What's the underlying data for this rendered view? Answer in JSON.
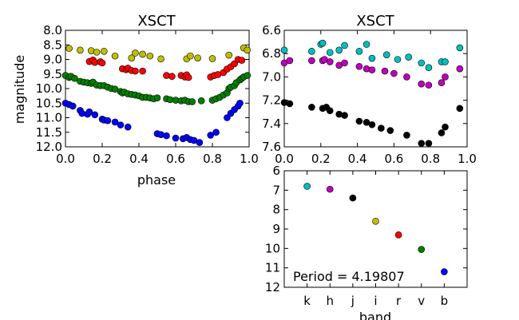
{
  "chart_data": [
    {
      "type": "scatter",
      "title": "XSCT",
      "xlabel": "phase",
      "ylabel": "magnitude",
      "xlim": [
        0.0,
        1.0
      ],
      "ylim": [
        12.0,
        8.0
      ],
      "y_inverted": true,
      "xticks": [
        "0.0",
        "0.2",
        "0.4",
        "0.6",
        "0.8",
        "1.0"
      ],
      "yticks": [
        "8.0",
        "8.5",
        "9.0",
        "9.5",
        "10.0",
        "10.5",
        "11.0",
        "11.5",
        "12.0"
      ],
      "series": [
        {
          "color": "#bfbf00",
          "points": [
            [
              0.02,
              8.62
            ],
            [
              0.08,
              8.68
            ],
            [
              0.14,
              8.7
            ],
            [
              0.17,
              8.75
            ],
            [
              0.21,
              8.72
            ],
            [
              0.27,
              8.88
            ],
            [
              0.36,
              8.95
            ],
            [
              0.38,
              8.78
            ],
            [
              0.42,
              8.82
            ],
            [
              0.46,
              8.88
            ],
            [
              0.52,
              8.98
            ],
            [
              0.66,
              8.98
            ],
            [
              0.68,
              8.88
            ],
            [
              0.72,
              8.95
            ],
            [
              0.8,
              8.97
            ],
            [
              0.89,
              8.85
            ],
            [
              0.97,
              8.6
            ],
            [
              0.99,
              8.68
            ]
          ]
        },
        {
          "color": "#ff0000",
          "points": [
            [
              0.13,
              9.07
            ],
            [
              0.15,
              9.02
            ],
            [
              0.16,
              9.1
            ],
            [
              0.19,
              9.08
            ],
            [
              0.2,
              9.12
            ],
            [
              0.31,
              9.32
            ],
            [
              0.33,
              9.35
            ],
            [
              0.34,
              9.3
            ],
            [
              0.36,
              9.38
            ],
            [
              0.38,
              9.4
            ],
            [
              0.42,
              9.4
            ],
            [
              0.55,
              9.55
            ],
            [
              0.58,
              9.58
            ],
            [
              0.63,
              9.55
            ],
            [
              0.65,
              9.6
            ],
            [
              0.66,
              9.53
            ],
            [
              0.67,
              9.62
            ],
            [
              0.79,
              9.6
            ],
            [
              0.81,
              9.55
            ],
            [
              0.83,
              9.52
            ],
            [
              0.86,
              9.45
            ],
            [
              0.88,
              9.33
            ],
            [
              0.9,
              9.25
            ],
            [
              0.92,
              9.15
            ],
            [
              0.94,
              9.0
            ],
            [
              0.96,
              9.03
            ]
          ]
        },
        {
          "color": "#008000",
          "points": [
            [
              0.0,
              9.55
            ],
            [
              0.02,
              9.62
            ],
            [
              0.03,
              9.58
            ],
            [
              0.05,
              9.65
            ],
            [
              0.08,
              9.75
            ],
            [
              0.1,
              9.78
            ],
            [
              0.12,
              9.8
            ],
            [
              0.14,
              9.82
            ],
            [
              0.15,
              9.78
            ],
            [
              0.17,
              9.88
            ],
            [
              0.19,
              9.9
            ],
            [
              0.21,
              9.9
            ],
            [
              0.23,
              9.95
            ],
            [
              0.25,
              10.0
            ],
            [
              0.27,
              10.02
            ],
            [
              0.3,
              10.1
            ],
            [
              0.31,
              10.15
            ],
            [
              0.32,
              10.12
            ],
            [
              0.34,
              10.18
            ],
            [
              0.36,
              10.2
            ],
            [
              0.38,
              10.22
            ],
            [
              0.4,
              10.25
            ],
            [
              0.42,
              10.3
            ],
            [
              0.44,
              10.3
            ],
            [
              0.46,
              10.32
            ],
            [
              0.48,
              10.35
            ],
            [
              0.5,
              10.32
            ],
            [
              0.55,
              10.35
            ],
            [
              0.57,
              10.38
            ],
            [
              0.6,
              10.4
            ],
            [
              0.63,
              10.42
            ],
            [
              0.65,
              10.4
            ],
            [
              0.67,
              10.45
            ],
            [
              0.69,
              10.45
            ],
            [
              0.74,
              10.42
            ],
            [
              0.8,
              10.4
            ],
            [
              0.82,
              10.35
            ],
            [
              0.84,
              10.3
            ],
            [
              0.86,
              10.22
            ],
            [
              0.88,
              10.15
            ],
            [
              0.89,
              10.0
            ],
            [
              0.9,
              9.95
            ],
            [
              0.92,
              9.9
            ],
            [
              0.93,
              9.8
            ],
            [
              0.95,
              9.7
            ],
            [
              0.96,
              9.65
            ],
            [
              0.97,
              9.6
            ],
            [
              0.99,
              9.55
            ]
          ]
        },
        {
          "color": "#0000ff",
          "points": [
            [
              0.0,
              10.5
            ],
            [
              0.02,
              10.55
            ],
            [
              0.04,
              10.6
            ],
            [
              0.08,
              10.75
            ],
            [
              0.09,
              10.85
            ],
            [
              0.12,
              10.88
            ],
            [
              0.13,
              10.8
            ],
            [
              0.16,
              10.9
            ],
            [
              0.2,
              11.05
            ],
            [
              0.21,
              11.08
            ],
            [
              0.23,
              11.1
            ],
            [
              0.27,
              11.15
            ],
            [
              0.3,
              11.25
            ],
            [
              0.34,
              11.32
            ],
            [
              0.5,
              11.55
            ],
            [
              0.52,
              11.58
            ],
            [
              0.55,
              11.62
            ],
            [
              0.6,
              11.7
            ],
            [
              0.64,
              11.72
            ],
            [
              0.66,
              11.68
            ],
            [
              0.68,
              11.75
            ],
            [
              0.7,
              11.78
            ],
            [
              0.73,
              11.85
            ],
            [
              0.79,
              11.6
            ],
            [
              0.82,
              11.5
            ],
            [
              0.88,
              11.0
            ],
            [
              0.9,
              10.85
            ],
            [
              0.92,
              10.72
            ],
            [
              0.94,
              10.6
            ],
            [
              0.95,
              10.5
            ]
          ]
        }
      ]
    },
    {
      "type": "scatter",
      "title": "XSCT",
      "xlim": [
        0.0,
        1.0
      ],
      "ylim": [
        7.6,
        6.6
      ],
      "y_inverted": true,
      "xticks": [
        "0.0",
        "0.2",
        "0.4",
        "0.6",
        "0.8",
        "1.0"
      ],
      "yticks": [
        "6.6",
        "6.8",
        "7.0",
        "7.2",
        "7.4",
        "7.6"
      ],
      "series": [
        {
          "color": "#00bfbf",
          "points": [
            [
              0.0,
              6.77
            ],
            [
              0.15,
              6.78
            ],
            [
              0.2,
              6.72
            ],
            [
              0.21,
              6.71
            ],
            [
              0.25,
              6.79
            ],
            [
              0.3,
              6.77
            ],
            [
              0.33,
              6.73
            ],
            [
              0.41,
              6.78
            ],
            [
              0.45,
              6.72
            ],
            [
              0.48,
              6.84
            ],
            [
              0.56,
              6.81
            ],
            [
              0.62,
              6.85
            ],
            [
              0.68,
              6.83
            ],
            [
              0.75,
              6.88
            ],
            [
              0.79,
              6.92
            ],
            [
              0.86,
              6.87
            ],
            [
              0.88,
              6.87
            ],
            [
              0.96,
              6.75
            ]
          ]
        },
        {
          "color": "#bf00bf",
          "points": [
            [
              0.0,
              6.88
            ],
            [
              0.03,
              6.86
            ],
            [
              0.15,
              6.86
            ],
            [
              0.21,
              6.86
            ],
            [
              0.22,
              6.85
            ],
            [
              0.25,
              6.87
            ],
            [
              0.3,
              6.9
            ],
            [
              0.33,
              6.88
            ],
            [
              0.41,
              6.91
            ],
            [
              0.45,
              6.93
            ],
            [
              0.48,
              6.94
            ],
            [
              0.55,
              6.95
            ],
            [
              0.6,
              6.97
            ],
            [
              0.67,
              7.0
            ],
            [
              0.75,
              7.06
            ],
            [
              0.79,
              7.07
            ],
            [
              0.86,
              7.05
            ],
            [
              0.88,
              7.0
            ],
            [
              0.96,
              6.93
            ]
          ]
        },
        {
          "color": "#000000",
          "points": [
            [
              0.0,
              7.22
            ],
            [
              0.03,
              7.23
            ],
            [
              0.15,
              7.26
            ],
            [
              0.21,
              7.27
            ],
            [
              0.23,
              7.26
            ],
            [
              0.25,
              7.29
            ],
            [
              0.3,
              7.32
            ],
            [
              0.33,
              7.33
            ],
            [
              0.41,
              7.38
            ],
            [
              0.45,
              7.39
            ],
            [
              0.48,
              7.41
            ],
            [
              0.53,
              7.44
            ],
            [
              0.58,
              7.46
            ],
            [
              0.67,
              7.5
            ],
            [
              0.75,
              7.57
            ],
            [
              0.79,
              7.57
            ],
            [
              0.86,
              7.48
            ],
            [
              0.88,
              7.43
            ],
            [
              0.96,
              7.27
            ]
          ]
        }
      ]
    },
    {
      "type": "scatter",
      "xlabel": "band",
      "categories": [
        "k",
        "h",
        "j",
        "i",
        "r",
        "v",
        "b"
      ],
      "ylim": [
        12,
        6
      ],
      "y_inverted": true,
      "yticks": [
        "6",
        "7",
        "8",
        "9",
        "10",
        "11",
        "12"
      ],
      "annotation": "Period = 4.19807",
      "points": [
        {
          "band": "k",
          "value": 6.8,
          "color": "#00bfbf"
        },
        {
          "band": "h",
          "value": 6.95,
          "color": "#bf00bf"
        },
        {
          "band": "j",
          "value": 7.4,
          "color": "#000000"
        },
        {
          "band": "i",
          "value": 8.6,
          "color": "#bfbf00"
        },
        {
          "band": "r",
          "value": 9.3,
          "color": "#ff0000"
        },
        {
          "band": "v",
          "value": 10.05,
          "color": "#008000"
        },
        {
          "band": "b",
          "value": 11.2,
          "color": "#0000ff"
        }
      ]
    }
  ]
}
